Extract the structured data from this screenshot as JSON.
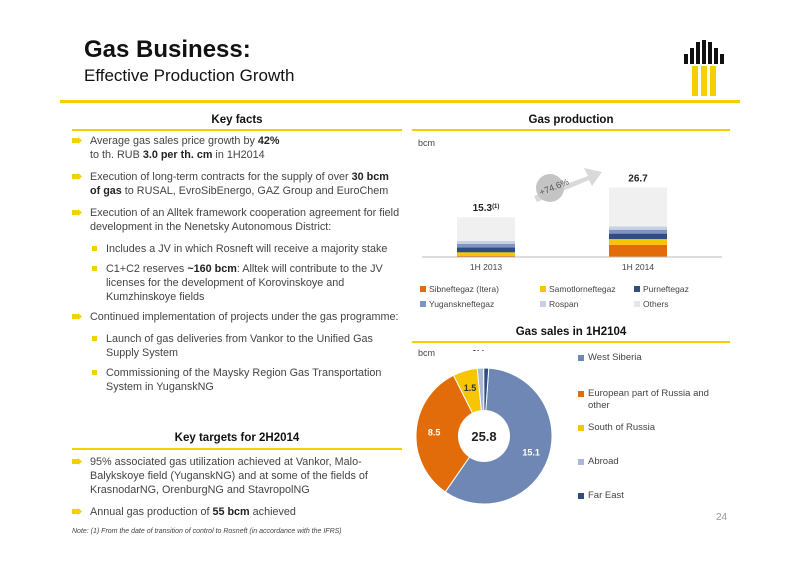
{
  "header": {
    "title": "Gas Business:",
    "subtitle": "Effective Production Growth"
  },
  "key_facts": {
    "heading": "Key facts",
    "b1_a": "Average gas sales price growth by ",
    "b1_b": "42%",
    "b1_c": "to th. RUB ",
    "b1_d": "3.0 per th. cm",
    "b1_e": " in 1H2014",
    "b2_a": "Execution of long-term contracts for the supply of over ",
    "b2_b": "30 bcm of gas",
    "b2_c": " to RUSAL, EvroSibEnergo, GAZ Group and EuroChem",
    "b3": "Execution of an Alltek framework cooperation agreement for field development in the Nenetsky Autonomous District:",
    "b3_1": "Includes a JV in which Rosneft will receive a majority stake",
    "b3_2_a": "C1+C2 reserves  ",
    "b3_2_b": "~160 bcm",
    "b3_2_c": ": Alltek will contribute to the JV licenses for the development of Korovinskoye and Kumzhinskoye fields",
    "b4": "Continued implementation of projects under the gas programme:",
    "b4_1": "Launch of gas deliveries from Vankor to the Unified Gas Supply System",
    "b4_2": "Commissioning of the Maysky Region Gas Transportation System in YuganskNG"
  },
  "key_targets": {
    "heading": "Key targets for 2H2014",
    "b1": "95% associated gas utilization achieved at Vankor, Malo-Balykskoye field (YuganskNG) and at some of the fields of KrasnodarNG, OrenburgNG and StavropolNG",
    "b2_a": "Annual gas production of ",
    "b2_b": "55 bcm",
    "b2_c": " achieved"
  },
  "footer": {
    "note": "Note: (1) From the date of transition of control to Rosneft (in accordance with the IFRS)",
    "page": "24"
  },
  "production": {
    "heading": "Gas production",
    "unit": "bcm",
    "total_label_1": "15.3",
    "total_sup_1": "(1)",
    "total_label_2": "26.7",
    "growth": "+74.6%"
  },
  "sales": {
    "heading": "Gas sales in 1H2104",
    "unit": "bcm",
    "total": "25.8"
  },
  "colors": {
    "accent": "#f5d000",
    "orange": "#e36c0a",
    "yellow": "#f7c600",
    "steel": "#6f87b4",
    "lightsteel": "#a9b9d6",
    "navy": "#2f4d7f"
  },
  "chart_data": [
    {
      "type": "bar",
      "stacked": true,
      "ylabel": "bcm",
      "categories": [
        "1H 2013",
        "1H 2014"
      ],
      "totals": [
        15.3,
        26.7
      ],
      "series": [
        {
          "name": "Sibneftegaz (Itera)",
          "color": "#e36c0a",
          "values": [
            0.5,
            4.7
          ]
        },
        {
          "name": "Samotlorneftegaz",
          "color": "#f7c600",
          "values": [
            1.3,
            2.2
          ]
        },
        {
          "name": "Purneftegaz",
          "color": "#2f4d7f",
          "values": [
            1.9,
            2.1
          ]
        },
        {
          "name": "Yuganskneftegaz",
          "color": "#7f95c1",
          "values": [
            1.4,
            1.5
          ]
        },
        {
          "name": "Rospan",
          "color": "#c8d1e3",
          "values": [
            1.1,
            1.3
          ]
        },
        {
          "name": "Others",
          "color": "#f0f0f0",
          "values": [
            9.1,
            14.9
          ]
        }
      ]
    },
    {
      "type": "pie",
      "donut": true,
      "title": "Gas sales in 1H2104",
      "unit": "bcm",
      "total": 25.8,
      "slices": [
        {
          "name": "West Siberia",
          "value": 15.1,
          "color": "#6f87b4"
        },
        {
          "name": "European part of Russia and other",
          "value": 8.5,
          "color": "#e36c0a"
        },
        {
          "name": "South of Russia",
          "value": 1.5,
          "color": "#f7c600"
        },
        {
          "name": "Abroad",
          "value": 0.4,
          "color": "#a9b9d6"
        },
        {
          "name": "Far East",
          "value": 0.3,
          "color": "#2f4d7f"
        }
      ]
    }
  ]
}
